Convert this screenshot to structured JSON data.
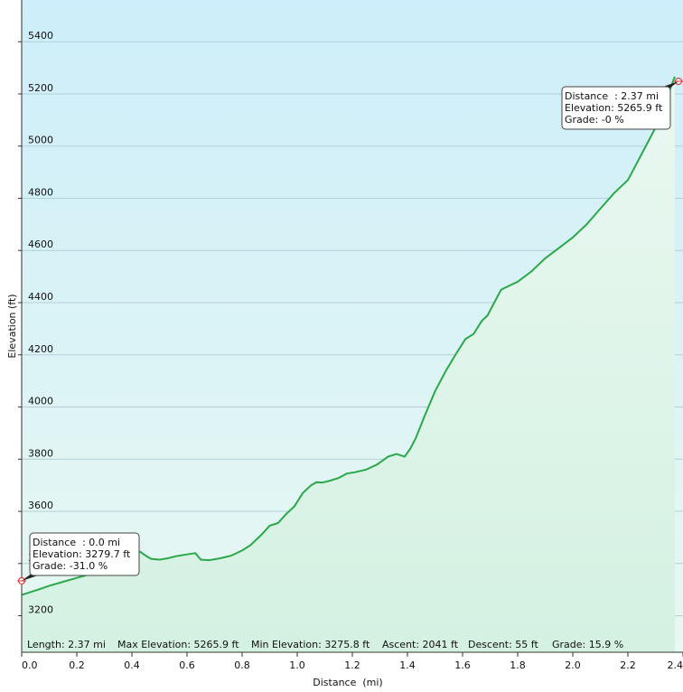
{
  "chart_data": {
    "type": "area",
    "xlabel": "Distance  (mi)",
    "ylabel": "Elevation (ft)",
    "xlim": [
      0,
      2.4
    ],
    "ylim": [
      3060,
      5560
    ],
    "x_ticks": [
      "0.0",
      "0.2",
      "0.4",
      "0.6",
      "0.8",
      "1.0",
      "1.2",
      "1.4",
      "1.6",
      "1.8",
      "2.0",
      "2.2",
      "2.4"
    ],
    "y_ticks": [
      "3200",
      "3400",
      "3600",
      "3800",
      "4000",
      "4200",
      "4400",
      "4600",
      "4800",
      "5000",
      "5200",
      "5400"
    ],
    "grid": true,
    "colors": {
      "line": "#2aa84a",
      "fill_top": "#e6f7f0",
      "fill_bottom": "#d2f0e0",
      "bg_top": "#cdeefa",
      "bg_bottom": "#e8f7f2",
      "grid": "#b4cfd8",
      "marker": "#e04040"
    },
    "series": [
      {
        "x": [
          0.0,
          0.03,
          0.06,
          0.1,
          0.15,
          0.2,
          0.25,
          0.3,
          0.35,
          0.4,
          0.43,
          0.45,
          0.47,
          0.5,
          0.53,
          0.56,
          0.6,
          0.63,
          0.65,
          0.68,
          0.72,
          0.76,
          0.8,
          0.83,
          0.87,
          0.9,
          0.93,
          0.96,
          0.99,
          1.02,
          1.05,
          1.07,
          1.09,
          1.12,
          1.15,
          1.18,
          1.21,
          1.25,
          1.29,
          1.33,
          1.36,
          1.39,
          1.41,
          1.43,
          1.46,
          1.5,
          1.54,
          1.58,
          1.61,
          1.64,
          1.67,
          1.69,
          1.72,
          1.74,
          1.77,
          1.8,
          1.85,
          1.9,
          1.95,
          2.0,
          2.05,
          2.1,
          2.15,
          2.2,
          2.25,
          2.3,
          2.34,
          2.37
        ],
        "y": [
          3279.7,
          3290,
          3300,
          3315,
          3330,
          3345,
          3360,
          3380,
          3405,
          3430,
          3445,
          3430,
          3418,
          3415,
          3420,
          3428,
          3435,
          3440,
          3415,
          3413,
          3420,
          3430,
          3450,
          3470,
          3510,
          3545,
          3555,
          3590,
          3620,
          3670,
          3700,
          3712,
          3710,
          3718,
          3728,
          3745,
          3750,
          3760,
          3780,
          3810,
          3820,
          3810,
          3840,
          3880,
          3960,
          4060,
          4140,
          4210,
          4260,
          4280,
          4330,
          4350,
          4410,
          4450,
          4465,
          4480,
          4520,
          4570,
          4610,
          4650,
          4700,
          4760,
          4820,
          4870,
          4970,
          5070,
          5180,
          5265.9
        ]
      }
    ],
    "tooltips": [
      {
        "lines": [
          "Distance  : 0.0 mi",
          "Elevation: 3279.7 ft",
          "Grade: -31.0 %"
        ]
      },
      {
        "lines": [
          "Distance  : 2.37 mi",
          "Elevation: 5265.9 ft",
          "Grade: -0 %"
        ]
      }
    ],
    "stats": {
      "length": "Length: 2.37 mi",
      "max_elevation": "Max Elevation: 5265.9 ft",
      "min_elevation": "Min Elevation: 3275.8 ft",
      "ascent": "Ascent: 2041 ft",
      "descent": "Descent: 55 ft",
      "grade": "Grade: 15.9 %"
    }
  }
}
